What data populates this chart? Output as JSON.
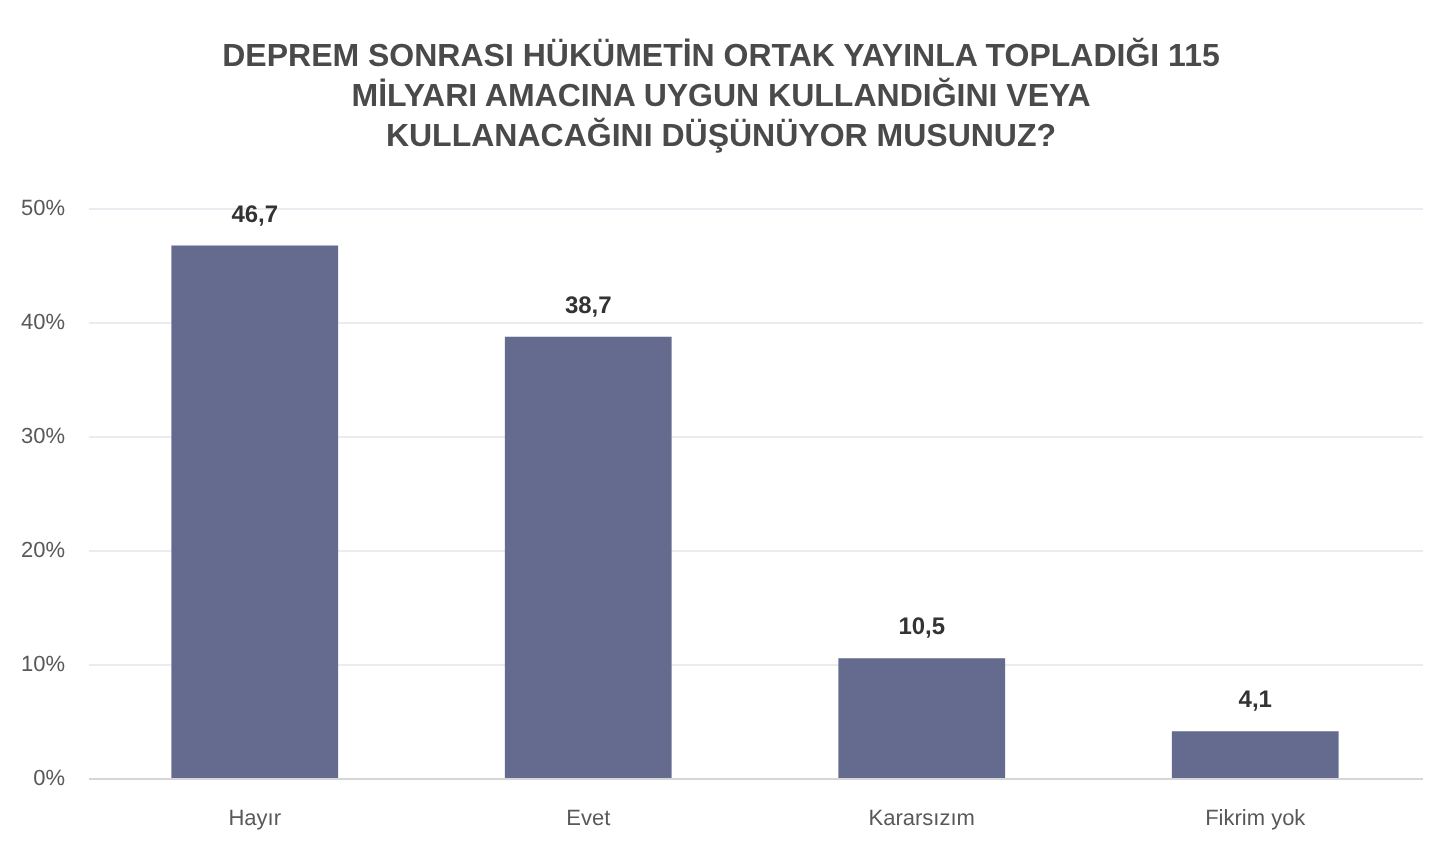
{
  "chart_data": {
    "type": "bar",
    "title": "DEPREM SONRASI HÜKÜMETİN ORTAK YAYINLA TOPLADIĞI 115\nMİLYARI AMACINA UYGUN KULLANDIĞINI VEYA\nKULLANACAĞINI DÜŞÜNÜYOR MUSUNUZ?",
    "categories": [
      "Hayır",
      "Evet",
      "Kararsızım",
      "Fikrim yok"
    ],
    "values": [
      46.7,
      38.7,
      10.5,
      4.1
    ],
    "color": "#646b8e",
    "value_labels": [
      "46,7",
      "38,7",
      "10,5",
      "4,1"
    ],
    "ylim": [
      0,
      50
    ],
    "yticks": [
      {
        "value": 0,
        "label": "0%"
      },
      {
        "value": 10,
        "label": "10%"
      },
      {
        "value": 20,
        "label": "20%"
      },
      {
        "value": 30,
        "label": "30%"
      },
      {
        "value": 40,
        "label": "40%"
      },
      {
        "value": 50,
        "label": "50%"
      }
    ],
    "grid": "y"
  }
}
